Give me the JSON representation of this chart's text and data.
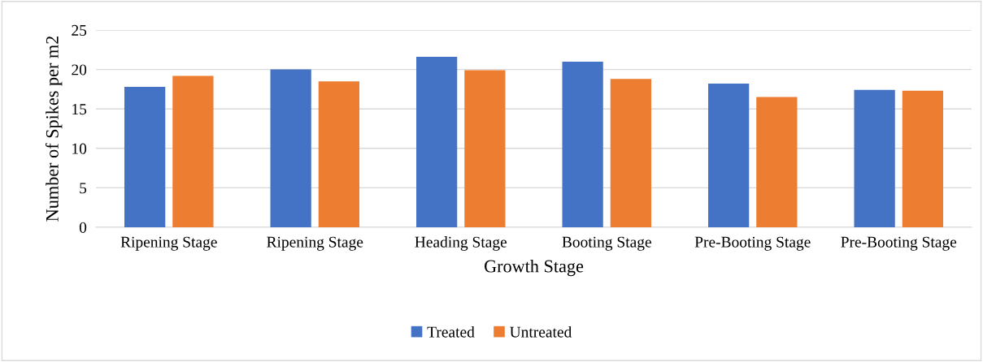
{
  "chart_data": {
    "type": "bar",
    "xlabel": "Growth Stage",
    "ylabel": "Number of Spikes per m2",
    "categories": [
      "Ripening Stage",
      "Ripening Stage",
      "Heading Stage",
      "Booting Stage",
      "Pre-Booting Stage",
      "Pre-Booting Stage"
    ],
    "series": [
      {
        "name": "Treated",
        "color": "#4472c4",
        "values": [
          17.8,
          20.0,
          21.6,
          21.0,
          18.2,
          17.4
        ]
      },
      {
        "name": "Untreated",
        "color": "#ed7d31",
        "values": [
          19.2,
          18.5,
          19.9,
          18.8,
          16.5,
          17.3
        ]
      }
    ],
    "ylim": [
      0,
      25
    ],
    "yticks": [
      0,
      5,
      10,
      15,
      20,
      25
    ],
    "grid": "y",
    "legend": "bottom"
  }
}
